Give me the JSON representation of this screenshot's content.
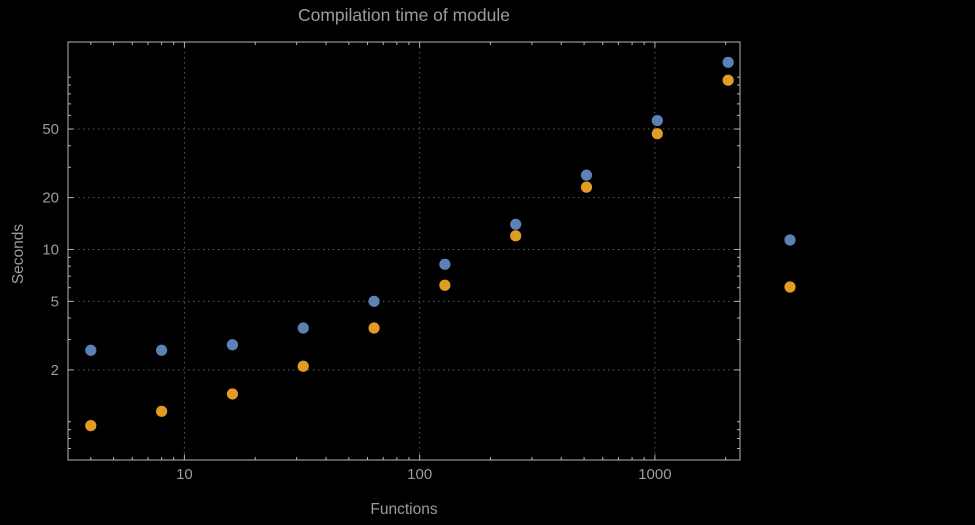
{
  "colors": {
    "background": "#000000",
    "text": "#9c9c9c",
    "frame": "#b4b4b4",
    "grid": "#5b5b5b"
  },
  "chart_data": {
    "type": "scatter",
    "title": "Compilation time of module",
    "xlabel": "Functions",
    "ylabel": "Seconds",
    "xscale": "log",
    "yscale": "log",
    "xlim": [
      3.2,
      2300
    ],
    "ylim": [
      0.6,
      160
    ],
    "grid": true,
    "x": [
      4,
      8,
      16,
      32,
      64,
      128,
      256,
      512,
      1024,
      2048
    ],
    "series": [
      {
        "name": "series-blue",
        "color": "#5e81b5",
        "values": [
          2.6,
          2.6,
          2.8,
          3.5,
          5.0,
          8.2,
          14,
          27,
          56,
          122
        ]
      },
      {
        "name": "series-orange",
        "color": "#e19c24",
        "values": [
          0.95,
          1.15,
          1.45,
          2.1,
          3.5,
          6.2,
          12,
          23,
          47,
          96
        ]
      }
    ],
    "x_ticks": [
      {
        "value": 10,
        "label": "10"
      },
      {
        "value": 100,
        "label": "100"
      },
      {
        "value": 1000,
        "label": "1000"
      }
    ],
    "y_ticks": [
      {
        "value": 2,
        "label": "2"
      },
      {
        "value": 5,
        "label": "5"
      },
      {
        "value": 10,
        "label": "10"
      },
      {
        "value": 20,
        "label": "20"
      },
      {
        "value": 50,
        "label": "50"
      }
    ],
    "legend": {
      "items": [
        {
          "series": "series-blue",
          "label": ""
        },
        {
          "series": "series-orange",
          "label": ""
        }
      ]
    }
  }
}
